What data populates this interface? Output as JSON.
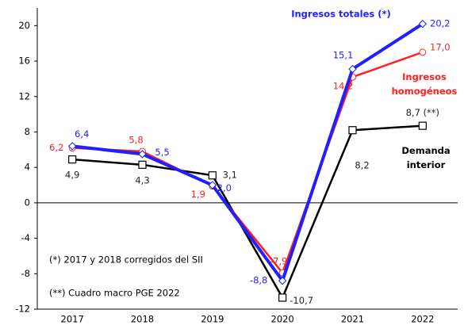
{
  "chart_data": {
    "type": "line",
    "categories": [
      "2017",
      "2018",
      "2019",
      "2020",
      "2021",
      "2022"
    ],
    "series": [
      {
        "name": "Ingresos totales (*)",
        "color": "#1f1fff",
        "marker": "diamond",
        "values": [
          6.4,
          5.5,
          2.0,
          -8.8,
          15.1,
          20.2
        ],
        "value_labels": [
          "6,4",
          "5,5",
          "2,0",
          "-8,8",
          "15,1",
          "20,2"
        ]
      },
      {
        "name": "Ingresos homogéneos",
        "color": "#ff2020",
        "marker": "circle",
        "values": [
          6.2,
          5.8,
          1.9,
          -7.9,
          14.2,
          17.0
        ],
        "value_labels": [
          "6,2",
          "5,8",
          "1,9",
          "-7,9",
          "14,2",
          "17,0"
        ]
      },
      {
        "name": "Demanda interior",
        "color": "#000000",
        "marker": "square",
        "values": [
          4.9,
          4.3,
          3.1,
          -10.7,
          8.2,
          8.7
        ],
        "value_labels": [
          "4,9",
          "4,3",
          "3,1",
          "-10,7",
          "8,2",
          "8,7 (**)"
        ]
      }
    ],
    "annotations": [
      "(*) 2017 y 2018 corregidos del SII",
      "(**) Cuadro macro PGE 2022"
    ],
    "ylim": [
      -12,
      22
    ],
    "yticks": [
      20,
      16,
      12,
      8,
      4,
      0,
      -4,
      -8,
      -12
    ],
    "grid": false
  }
}
